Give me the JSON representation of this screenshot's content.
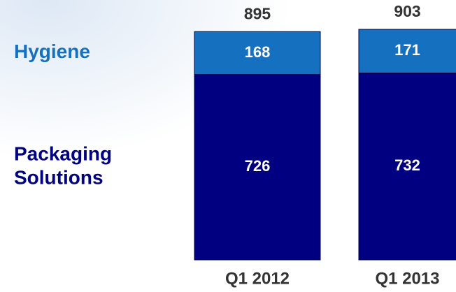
{
  "chart_data": {
    "type": "stacked_bar",
    "categories": [
      "Q1 2012",
      "Q1 2013"
    ],
    "series": [
      {
        "name": "Packaging Solutions",
        "color": "#000080",
        "values": [
          726,
          732
        ]
      },
      {
        "name": "Hygiene",
        "color": "#1570c0",
        "values": [
          168,
          171
        ]
      }
    ],
    "totals": [
      895,
      903
    ]
  }
}
